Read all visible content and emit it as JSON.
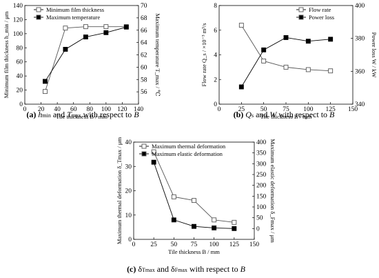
{
  "chart_data": [
    {
      "id": "a",
      "type": "line",
      "x": [
        25,
        50,
        75,
        100,
        125
      ],
      "xlabel": "Tile thickness B / mm",
      "xlim": [
        0,
        140
      ],
      "xticks": [
        "0",
        "20",
        "40",
        "60",
        "80",
        "100",
        "120",
        "140"
      ],
      "ylabel_left": "Minimum film thickness h_min / μm",
      "ylim_left": [
        0,
        140
      ],
      "yticks_left": [
        "0",
        "20",
        "40",
        "60",
        "80",
        "100",
        "120",
        "140"
      ],
      "ylabel_right": "Maximum temperature T_max / ℃",
      "ylim_right": [
        54,
        70
      ],
      "yticks_right": [
        "56",
        "58",
        "60",
        "62",
        "64",
        "66",
        "68",
        "70"
      ],
      "legend_position": "top-left",
      "grid": false,
      "series": [
        {
          "name": "Minimum film thickness",
          "axis": "left",
          "marker": "open-square",
          "values": [
            18,
            108,
            110,
            110,
            110
          ]
        },
        {
          "name": "Maximum temperature",
          "axis": "right",
          "marker": "filled-square",
          "values": [
            57.7,
            62.9,
            64.9,
            65.6,
            66.5
          ]
        }
      ],
      "caption": {
        "label": "(a)",
        "parts": [
          "h",
          "min",
          " and ",
          "T",
          "max",
          " with respect to ",
          "B"
        ]
      }
    },
    {
      "id": "b",
      "type": "line",
      "x": [
        25,
        50,
        75,
        100,
        125
      ],
      "xlabel": "Tile thickness B / mm",
      "xlim": [
        0,
        150
      ],
      "xticks": [
        "0",
        "25",
        "50",
        "75",
        "100",
        "125",
        "150"
      ],
      "ylabel_left": "Flow rate Q_s / ×10⁻³ m³/s",
      "ylim_left": [
        0,
        8
      ],
      "yticks_left": [
        "0",
        "2",
        "4",
        "6",
        "8"
      ],
      "ylabel_right": "Power loss W / kW",
      "ylim_right": [
        340,
        400
      ],
      "yticks_right": [
        "340",
        "360",
        "380",
        "400"
      ],
      "legend_position": "top-right",
      "grid": false,
      "series": [
        {
          "name": "Flow rate",
          "axis": "left",
          "marker": "open-square",
          "values": [
            6.4,
            3.5,
            3.0,
            2.8,
            2.7
          ]
        },
        {
          "name": "Power loss",
          "axis": "right",
          "marker": "filled-square",
          "values": [
            350.5,
            373,
            380.5,
            378.3,
            379.5
          ]
        }
      ],
      "caption": {
        "label": "(b)",
        "parts": [
          "Q",
          "s",
          " and ",
          "W",
          " with respect to ",
          "B"
        ]
      }
    },
    {
      "id": "c",
      "type": "line",
      "x": [
        25,
        50,
        75,
        100,
        125
      ],
      "xlabel": "Tile thickness B / mm",
      "xlim": [
        0,
        150
      ],
      "xticks": [
        "0",
        "25",
        "50",
        "75",
        "100",
        "125",
        "150"
      ],
      "ylabel_left": "Maximum thermal deformation δ_Tmax / μm",
      "ylim_left": [
        0,
        40
      ],
      "yticks_left": [
        "0",
        "10",
        "20",
        "30",
        "40"
      ],
      "ylabel_right": "Maximum elastic deformation δ_Fmax / μm",
      "ylim_right": [
        -50,
        400
      ],
      "yticks_right": [
        "0",
        "50",
        "100",
        "150",
        "200",
        "250",
        "300",
        "350",
        "400"
      ],
      "legend_position": "top-right",
      "grid": false,
      "series": [
        {
          "name": "Maximum thermal deformation",
          "axis": "left",
          "marker": "open-square",
          "values": [
            36,
            17.5,
            16,
            8,
            7
          ]
        },
        {
          "name": "Maximum elastic deformation",
          "axis": "right",
          "marker": "filled-square",
          "values": [
            307,
            40,
            10,
            3,
            0
          ]
        }
      ],
      "caption": {
        "label": "(c)",
        "parts": [
          "δ",
          "Tmax",
          " and ",
          "δ",
          "Fmax",
          " with respect to ",
          "B"
        ]
      }
    }
  ]
}
